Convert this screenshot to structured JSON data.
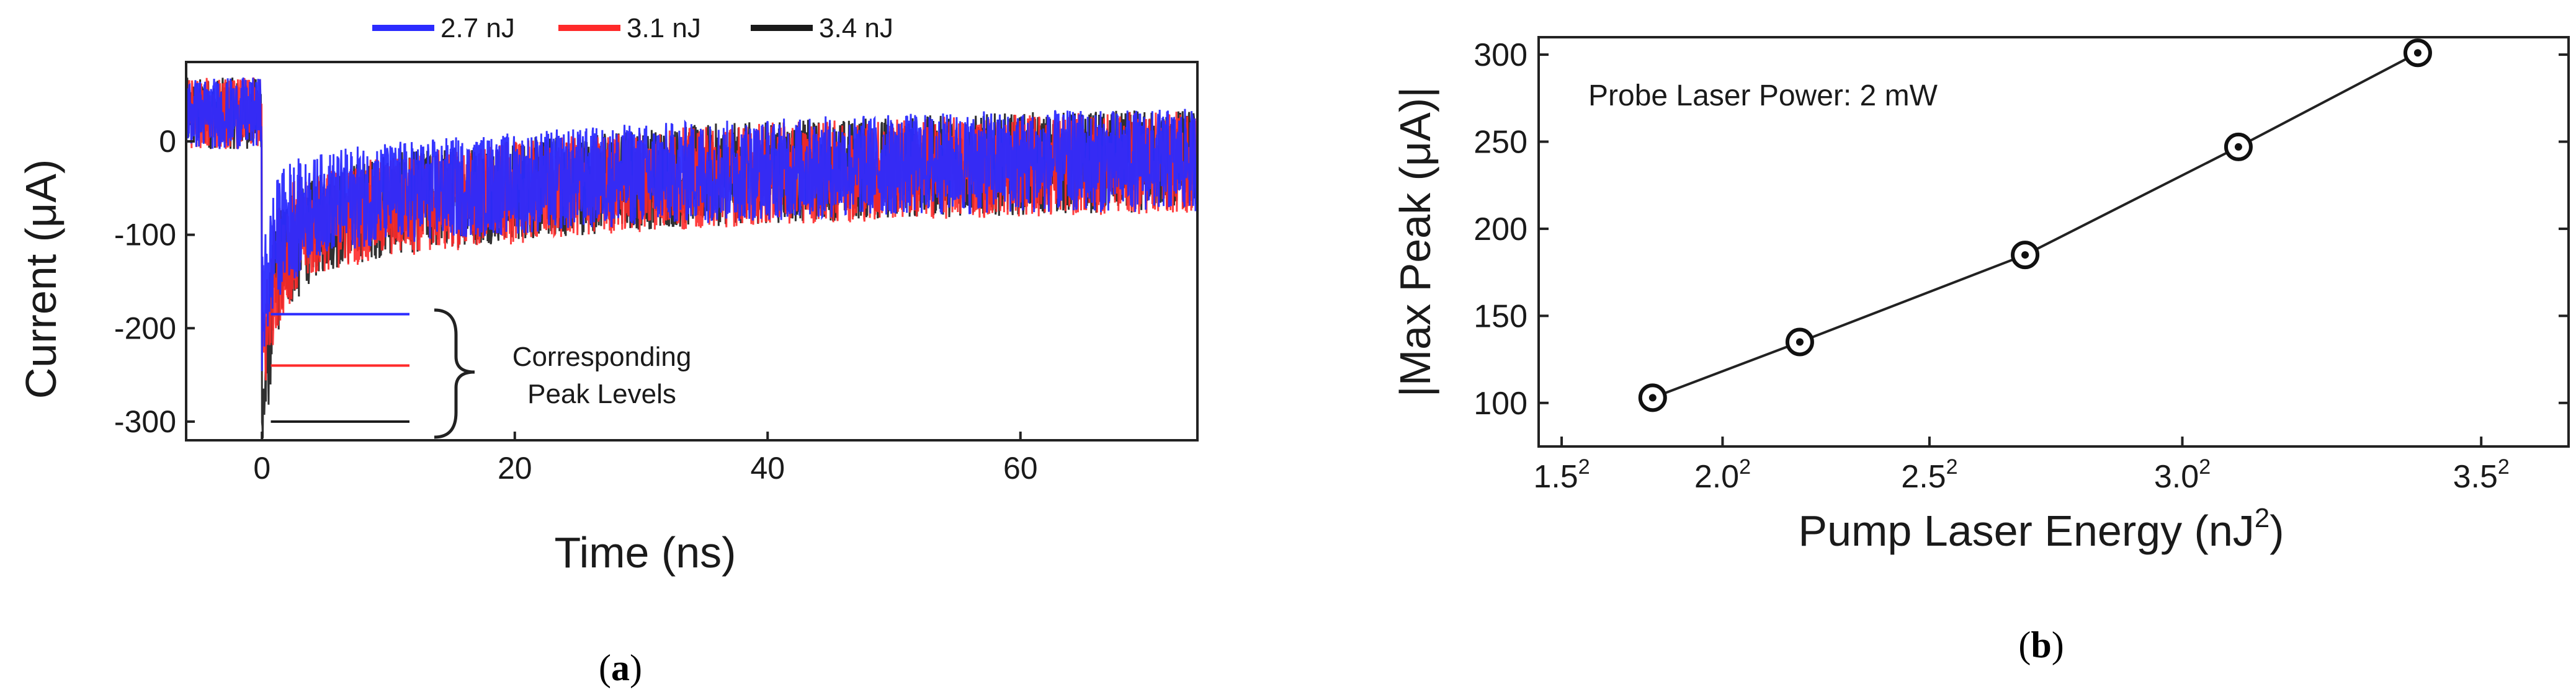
{
  "chart_data": [
    {
      "type": "line",
      "panel_label": "(a)",
      "panel_letter": "a",
      "xlabel": "Time (ns)",
      "ylabel": "Current (μA)",
      "xlim": [
        -6,
        74
      ],
      "ylim": [
        -320,
        85
      ],
      "x_ticks": [
        0,
        20,
        40,
        60
      ],
      "x_tick_labels": [
        "0",
        "20",
        "40",
        "60"
      ],
      "y_ticks": [
        0,
        -100,
        -200,
        -300
      ],
      "y_tick_labels": [
        "0",
        "-100",
        "-200",
        "-300"
      ],
      "legend": [
        "2.7 nJ",
        "3.1 nJ",
        "3.4 nJ"
      ],
      "legend_position": "top",
      "series": [
        {
          "name": "2.7 nJ",
          "color": "#2b2bff",
          "pre_pulse_level": 30,
          "dip_min": -180,
          "x": [
            0,
            1,
            2,
            5,
            10,
            20,
            30,
            40,
            50,
            60,
            74
          ],
          "values": [
            -180,
            -110,
            -85,
            -65,
            -55,
            -45,
            -35,
            -30,
            -25,
            -22,
            -20
          ],
          "peak_level": -185,
          "noise_amplitude": 55
        },
        {
          "name": "3.1 nJ",
          "color": "#ff2a2a",
          "pre_pulse_level": 30,
          "dip_min": -240,
          "x": [
            0,
            1,
            2,
            5,
            10,
            20,
            30,
            40,
            50,
            60,
            74
          ],
          "values": [
            -240,
            -140,
            -110,
            -85,
            -70,
            -55,
            -42,
            -35,
            -30,
            -26,
            -22
          ],
          "peak_level": -240,
          "noise_amplitude": 55
        },
        {
          "name": "3.4 nJ",
          "color": "#1a1a1a",
          "pre_pulse_level": 30,
          "dip_min": -300,
          "x": [
            0,
            1,
            2,
            5,
            10,
            20,
            30,
            40,
            50,
            60,
            74
          ],
          "values": [
            -300,
            -150,
            -115,
            -85,
            -68,
            -52,
            -40,
            -33,
            -28,
            -24,
            -20
          ],
          "peak_level": -300,
          "noise_amplitude": 55
        }
      ],
      "annotation": [
        "Corresponding",
        "Peak Levels"
      ]
    },
    {
      "type": "line",
      "panel_label": "(b)",
      "panel_letter": "b",
      "xlabel": "Pump Laser Energy (nJ",
      "xlabel_sup": "2",
      "xlabel_end": ")",
      "ylabel": "|Max Peak (μA)|",
      "annotation": "Probe Laser Power: 2 mW",
      "xlim": [
        2.0,
        13.2
      ],
      "ylim": [
        75,
        310
      ],
      "x_ticks": [
        2.25,
        4.0,
        6.25,
        9.0,
        12.25
      ],
      "x_tick_labels": [
        "1.5",
        "2.0",
        "2.5",
        "3.0",
        "3.5"
      ],
      "x_tick_sup": "2",
      "y_ticks": [
        100,
        150,
        200,
        250,
        300
      ],
      "y_tick_labels": [
        "100",
        "150",
        "200",
        "250",
        "300"
      ],
      "series": [
        {
          "name": "|Max Peak|",
          "x": [
            3.24,
            4.84,
            7.29,
            9.61,
            11.56
          ],
          "values": [
            103,
            135,
            185,
            247,
            301
          ]
        }
      ]
    }
  ]
}
